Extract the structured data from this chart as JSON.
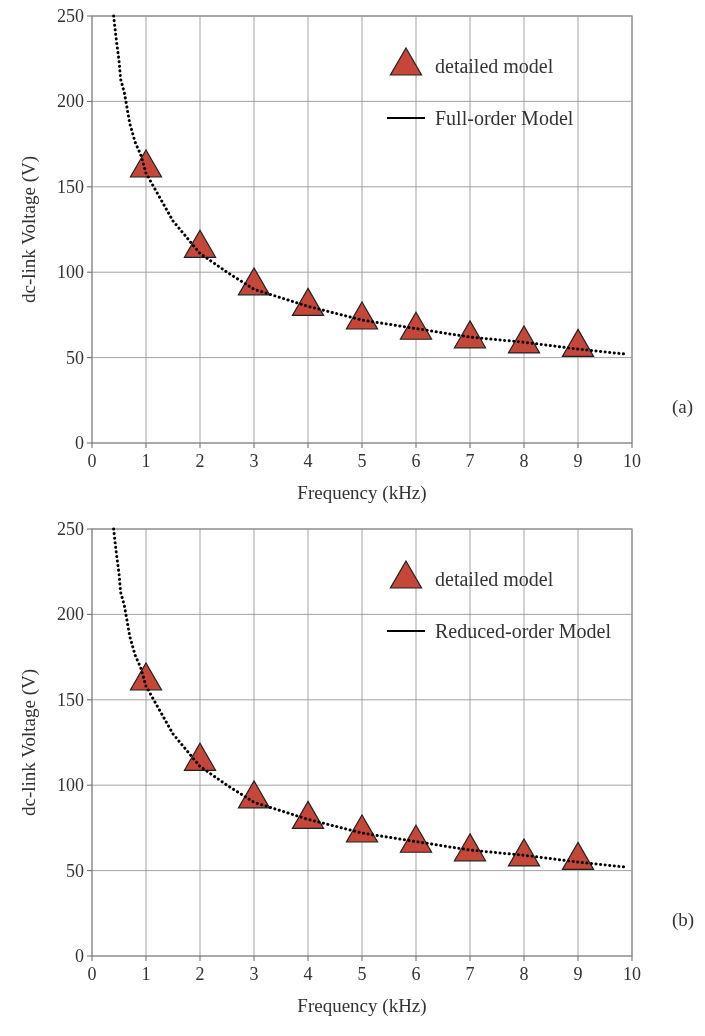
{
  "chart_data": [
    {
      "type": "line",
      "xlabel": "Frequency (kHz)",
      "ylabel": "dc-link Voltage (V)",
      "xlim": [
        0,
        10
      ],
      "ylim": [
        0,
        250
      ],
      "xticks": [
        0,
        1,
        2,
        3,
        4,
        5,
        6,
        7,
        8,
        9,
        10
      ],
      "yticks": [
        0,
        50,
        100,
        150,
        200,
        250
      ],
      "grid": true,
      "legend": "top right",
      "annotations": [
        "(a)"
      ],
      "series": [
        {
          "name": "detailed model",
          "type": "scatter",
          "marker": "triangle",
          "color": "#c4473a",
          "x": [
            1,
            2,
            3,
            4,
            5,
            6,
            7,
            8,
            9
          ],
          "values": [
            161,
            114,
            92,
            80,
            72,
            66,
            61,
            58,
            56
          ]
        },
        {
          "name": "Full-order Model",
          "type": "line",
          "line_style": "dotted",
          "marker": "none",
          "color": "#000000",
          "x": [
            0.4,
            0.45,
            0.5,
            0.53,
            0.6,
            0.65,
            0.7,
            0.8,
            0.9,
            1,
            1.5,
            2,
            2.5,
            3,
            4,
            5,
            6,
            7,
            8,
            9,
            9.9
          ],
          "values": [
            250,
            236,
            224,
            213,
            205,
            196,
            187,
            176,
            169,
            158,
            130,
            111,
            100,
            90,
            80,
            72,
            67,
            62,
            59,
            55,
            52
          ]
        }
      ]
    },
    {
      "type": "line",
      "xlabel": "Frequency (kHz)",
      "ylabel": "dc-link Voltage (V)",
      "xlim": [
        0,
        10
      ],
      "ylim": [
        0,
        250
      ],
      "xticks": [
        0,
        1,
        2,
        3,
        4,
        5,
        6,
        7,
        8,
        9,
        10
      ],
      "yticks": [
        0,
        50,
        100,
        150,
        200,
        250
      ],
      "grid": true,
      "legend": "top right",
      "annotations": [
        "(b)"
      ],
      "series": [
        {
          "name": "detailed model",
          "type": "scatter",
          "marker": "triangle",
          "color": "#c4473a",
          "x": [
            1,
            2,
            3,
            4,
            5,
            6,
            7,
            8,
            9
          ],
          "values": [
            161,
            114,
            92,
            80,
            72,
            66,
            61,
            58,
            56
          ]
        },
        {
          "name": "Reduced-order Model",
          "type": "line",
          "line_style": "dotted",
          "marker": "none",
          "color": "#000000",
          "x": [
            0.4,
            0.45,
            0.5,
            0.53,
            0.6,
            0.65,
            0.7,
            0.8,
            0.9,
            1,
            1.5,
            2,
            2.5,
            3,
            4,
            5,
            6,
            7,
            8,
            9,
            9.9
          ],
          "values": [
            250,
            236,
            224,
            213,
            205,
            196,
            187,
            176,
            169,
            158,
            130,
            111,
            100,
            90,
            80,
            72,
            67,
            62,
            59,
            55,
            52
          ]
        }
      ]
    }
  ]
}
